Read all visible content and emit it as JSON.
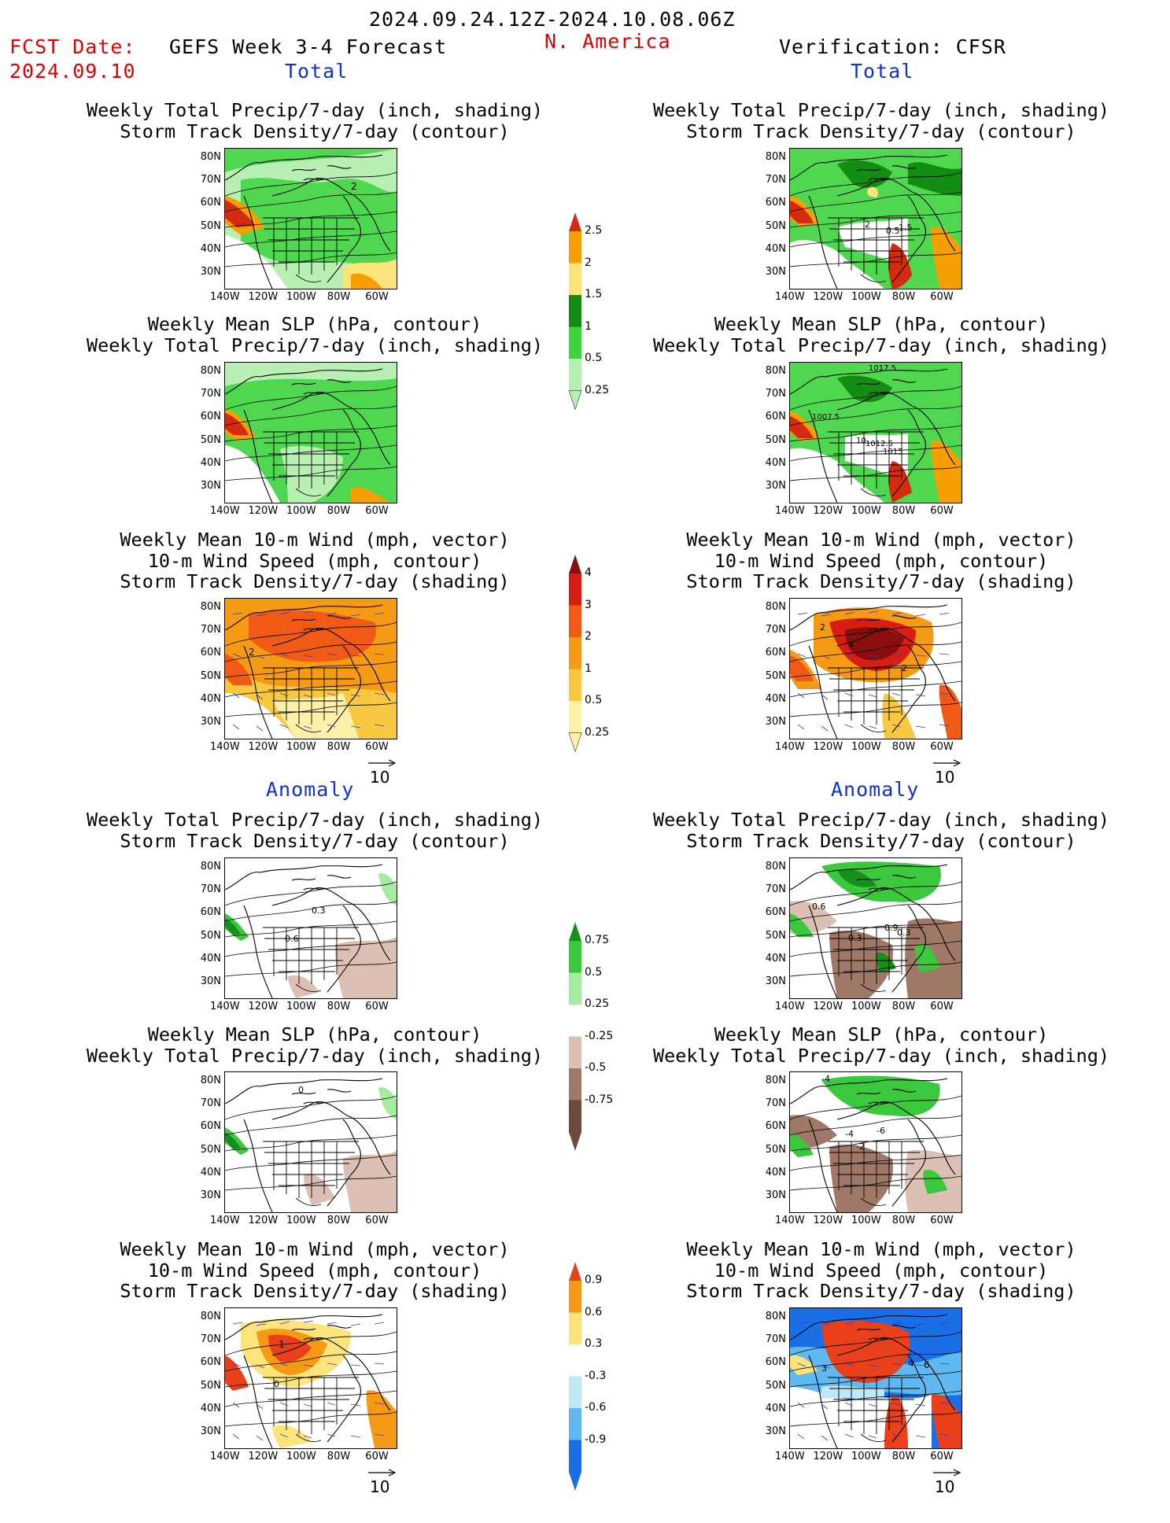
{
  "header": {
    "period": "2024.09.24.12Z-2024.10.08.06Z",
    "fcst_label": "FCST Date:",
    "fcst_date": "2024.09.10",
    "product": "GEFS Week 3-4 Forecast",
    "region": "N. America",
    "verification": "Verification: CFSR"
  },
  "sections": {
    "total": "Total",
    "anomaly": "Anomaly"
  },
  "titles": {
    "precip_storm": [
      "Weekly Total Precip/7-day (inch, shading)",
      "Storm Track Density/7-day (contour)"
    ],
    "slp_precip": [
      "Weekly Mean SLP (hPa, contour)",
      "Weekly Total Precip/7-day (inch, shading)"
    ],
    "wind_storm": [
      "Weekly Mean 10-m Wind (mph, vector)",
      "10-m Wind Speed (mph, contour)",
      "Storm Track Density/7-day (shading)"
    ]
  },
  "axes": {
    "lat_labels": [
      "80N",
      "70N",
      "60N",
      "50N",
      "40N",
      "30N"
    ],
    "lon_labels": [
      "140W",
      "120W",
      "100W",
      "80W",
      "60W"
    ]
  },
  "vector_ref": "10",
  "colorbars": {
    "precip_total": {
      "labels": [
        "2.5",
        "2",
        "1.5",
        "1",
        "0.5",
        "0.25"
      ],
      "colors": [
        "#d42a10",
        "#f5a000",
        "#fce37a",
        "#128c12",
        "#3dd43d",
        "#b4f0b4"
      ]
    },
    "storm_total": {
      "labels": [
        "4",
        "3",
        "2",
        "1",
        "0.5",
        "0.25"
      ],
      "colors": [
        "#8a0e0e",
        "#d81e14",
        "#f05a14",
        "#f59a14",
        "#f8c840",
        "#fdf0a8"
      ]
    },
    "precip_anom": {
      "labels": [
        "0.75",
        "0.5",
        "0.25",
        "-0.25",
        "-0.5",
        "-0.75"
      ],
      "colors": [
        "#16901c",
        "#3cc83c",
        "#a6eca0",
        "#ffffff",
        "#dcc0b4",
        "#a07868",
        "#6e4a3c"
      ]
    },
    "storm_anom": {
      "labels": [
        "0.9",
        "0.6",
        "0.3",
        "-0.3",
        "-0.6",
        "-0.9"
      ],
      "colors": [
        "#e8401a",
        "#f59a14",
        "#fce37a",
        "#ffffff",
        "#bfe8f5",
        "#60b8f0",
        "#1a6ee6"
      ]
    }
  },
  "map_labels": {
    "tl_1": "2",
    "tr_1": [
      "2",
      "0.5",
      "1.5"
    ],
    "tr_2": [
      "1017.5",
      "1007.5",
      "1012.5",
      "1015",
      "10"
    ],
    "wl_1": "2",
    "wr_1": [
      "2",
      "4",
      "2"
    ],
    "al_1": [
      "0.3",
      "0.6"
    ],
    "ar_1": [
      "0.6",
      "0.9",
      "0.3",
      "-0.3"
    ],
    "al_2": "0",
    "ar_2": [
      "-4",
      "-6",
      "-4",
      "-2"
    ],
    "wal": [
      "1",
      "0"
    ],
    "war": [
      "4",
      "6",
      "3"
    ]
  }
}
